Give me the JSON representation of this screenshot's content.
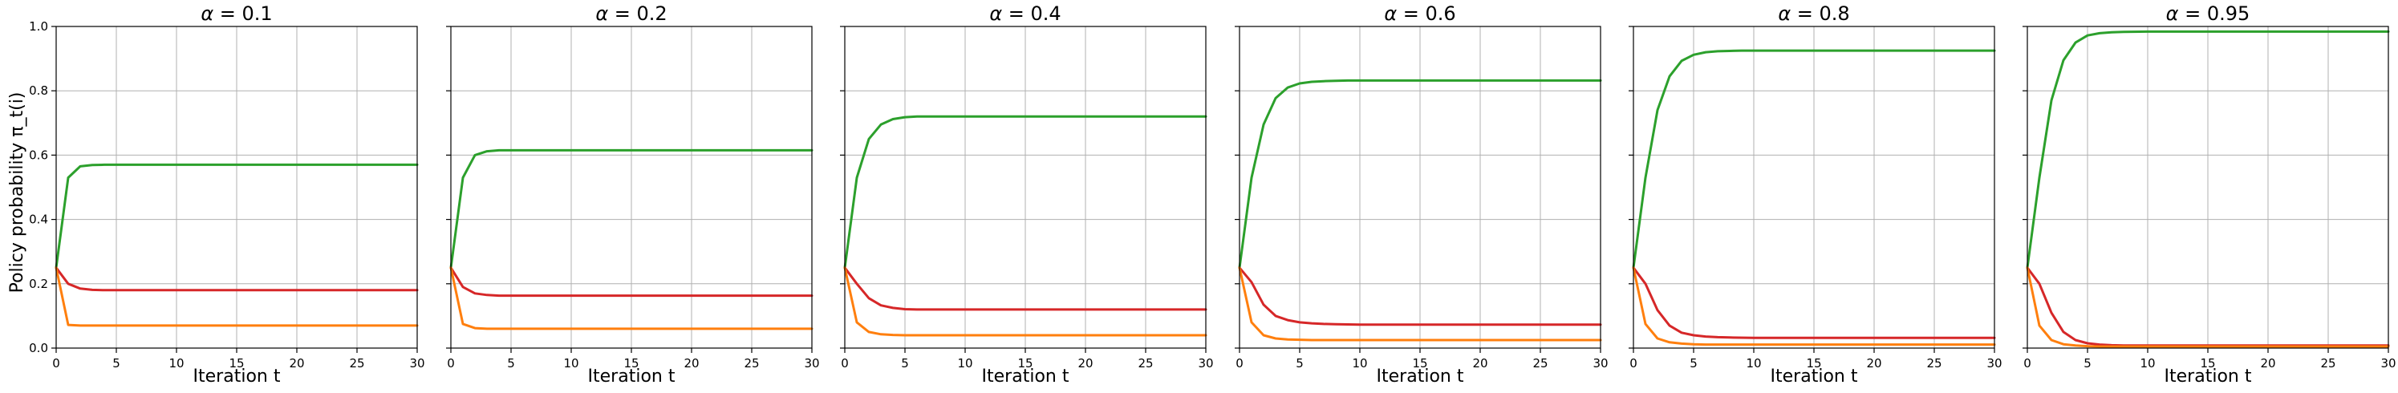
{
  "chart_data": {
    "type": "line",
    "layout": "1x6 subplots, shared y axis",
    "ylabel": "Policy probability π_t(i)",
    "xlabel": "Iteration t",
    "xlim": [
      0,
      30
    ],
    "ylim": [
      0,
      1.0
    ],
    "xticks": [
      0,
      5,
      10,
      15,
      20,
      25,
      30
    ],
    "yticks": [
      0.0,
      0.2,
      0.4,
      0.6,
      0.8,
      1.0
    ],
    "ytick_labels": [
      "0.0",
      "0.2",
      "0.4",
      "0.6",
      "0.8",
      "1.0"
    ],
    "grid": true,
    "colors": {
      "green": "#2ca02c",
      "red": "#d62728",
      "orange": "#ff7f0e"
    },
    "panels": [
      {
        "title_prefix": "α",
        "title_value": "= 0.1",
        "series": [
          {
            "color": "green",
            "x": [
              0,
              1,
              2,
              3,
              4,
              5,
              30
            ],
            "y": [
              0.25,
              0.53,
              0.565,
              0.569,
              0.57,
              0.57,
              0.57
            ]
          },
          {
            "color": "red",
            "x": [
              0,
              1,
              2,
              3,
              4,
              5,
              30
            ],
            "y": [
              0.25,
              0.2,
              0.185,
              0.181,
              0.18,
              0.18,
              0.18
            ]
          },
          {
            "color": "orange",
            "x": [
              0,
              1,
              2,
              3,
              30
            ],
            "y": [
              0.25,
              0.072,
              0.07,
              0.07,
              0.07
            ]
          }
        ]
      },
      {
        "title_prefix": "α",
        "title_value": "= 0.2",
        "series": [
          {
            "color": "green",
            "x": [
              0,
              1,
              2,
              3,
              4,
              5,
              30
            ],
            "y": [
              0.25,
              0.53,
              0.6,
              0.612,
              0.615,
              0.615,
              0.615
            ]
          },
          {
            "color": "red",
            "x": [
              0,
              1,
              2,
              3,
              4,
              5,
              30
            ],
            "y": [
              0.25,
              0.19,
              0.17,
              0.165,
              0.163,
              0.163,
              0.163
            ]
          },
          {
            "color": "orange",
            "x": [
              0,
              1,
              2,
              3,
              30
            ],
            "y": [
              0.25,
              0.075,
              0.062,
              0.06,
              0.06
            ]
          }
        ]
      },
      {
        "title_prefix": "α",
        "title_value": "= 0.4",
        "series": [
          {
            "color": "green",
            "x": [
              0,
              1,
              2,
              3,
              4,
              5,
              6,
              7,
              8,
              30
            ],
            "y": [
              0.25,
              0.53,
              0.65,
              0.695,
              0.712,
              0.718,
              0.72,
              0.72,
              0.72,
              0.72
            ]
          },
          {
            "color": "red",
            "x": [
              0,
              1,
              2,
              3,
              4,
              5,
              6,
              7,
              30
            ],
            "y": [
              0.25,
              0.2,
              0.155,
              0.133,
              0.125,
              0.121,
              0.12,
              0.12,
              0.12
            ]
          },
          {
            "color": "orange",
            "x": [
              0,
              1,
              2,
              3,
              4,
              5,
              30
            ],
            "y": [
              0.25,
              0.08,
              0.05,
              0.043,
              0.041,
              0.04,
              0.04
            ]
          }
        ]
      },
      {
        "title_prefix": "α",
        "title_value": "= 0.6",
        "series": [
          {
            "color": "green",
            "x": [
              0,
              1,
              2,
              3,
              4,
              5,
              6,
              7,
              8,
              9,
              10,
              30
            ],
            "y": [
              0.25,
              0.53,
              0.695,
              0.777,
              0.81,
              0.823,
              0.828,
              0.83,
              0.831,
              0.832,
              0.832,
              0.832
            ]
          },
          {
            "color": "red",
            "x": [
              0,
              1,
              2,
              3,
              4,
              5,
              6,
              7,
              8,
              10,
              30
            ],
            "y": [
              0.25,
              0.205,
              0.135,
              0.1,
              0.087,
              0.08,
              0.077,
              0.075,
              0.074,
              0.073,
              0.073
            ]
          },
          {
            "color": "orange",
            "x": [
              0,
              1,
              2,
              3,
              4,
              5,
              6,
              30
            ],
            "y": [
              0.25,
              0.08,
              0.04,
              0.03,
              0.027,
              0.026,
              0.025,
              0.025
            ]
          }
        ]
      },
      {
        "title_prefix": "α",
        "title_value": "= 0.8",
        "series": [
          {
            "color": "green",
            "x": [
              0,
              1,
              2,
              3,
              4,
              5,
              6,
              7,
              8,
              9,
              10,
              30
            ],
            "y": [
              0.25,
              0.53,
              0.74,
              0.845,
              0.893,
              0.912,
              0.92,
              0.923,
              0.924,
              0.925,
              0.925,
              0.925
            ]
          },
          {
            "color": "red",
            "x": [
              0,
              1,
              2,
              3,
              4,
              5,
              6,
              7,
              8,
              10,
              30
            ],
            "y": [
              0.25,
              0.2,
              0.118,
              0.07,
              0.048,
              0.04,
              0.036,
              0.034,
              0.033,
              0.032,
              0.032
            ]
          },
          {
            "color": "orange",
            "x": [
              0,
              1,
              2,
              3,
              4,
              5,
              6,
              30
            ],
            "y": [
              0.25,
              0.075,
              0.03,
              0.018,
              0.014,
              0.012,
              0.011,
              0.011
            ]
          }
        ]
      },
      {
        "title_prefix": "α",
        "title_value": "= 0.95",
        "series": [
          {
            "color": "green",
            "x": [
              0,
              1,
              2,
              3,
              4,
              5,
              6,
              7,
              8,
              10,
              30
            ],
            "y": [
              0.25,
              0.53,
              0.77,
              0.895,
              0.95,
              0.972,
              0.979,
              0.982,
              0.983,
              0.984,
              0.984
            ]
          },
          {
            "color": "red",
            "x": [
              0,
              1,
              2,
              3,
              4,
              5,
              6,
              7,
              8,
              10,
              30
            ],
            "y": [
              0.25,
              0.2,
              0.11,
              0.05,
              0.025,
              0.015,
              0.011,
              0.009,
              0.008,
              0.008,
              0.008
            ]
          },
          {
            "color": "orange",
            "x": [
              0,
              1,
              2,
              3,
              4,
              5,
              6,
              30
            ],
            "y": [
              0.25,
              0.07,
              0.025,
              0.012,
              0.008,
              0.006,
              0.005,
              0.005
            ]
          }
        ]
      }
    ]
  }
}
